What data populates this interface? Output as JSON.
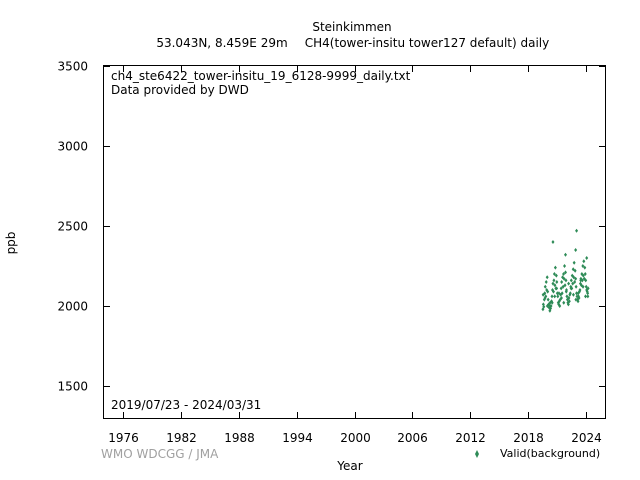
{
  "header": {
    "station": "Steinkimmen",
    "location": "53.043N, 8.459E 29m",
    "species": "CH4(tower-insitu tower127 default) daily"
  },
  "annotations": {
    "filename": "ch4_ste6422_tower-insitu_19_6128-9999_daily.txt",
    "provider": "Data provided by DWD",
    "period": "2019/07/23 - 2024/03/31",
    "credit": "WMO WDCGG / JMA"
  },
  "legend": {
    "marker_label": "Valid(background)"
  },
  "colors": {
    "series": "#2e8b57",
    "credit": "#a0a0a0"
  },
  "chart_data": {
    "type": "scatter",
    "xlabel": "Year",
    "ylabel": "ppb",
    "xlim": [
      1974,
      2026
    ],
    "ylim": [
      1300,
      3500
    ],
    "xticks": [
      1976,
      1982,
      1988,
      1994,
      2000,
      2006,
      2012,
      2018,
      2024
    ],
    "yticks": [
      1500,
      2000,
      2500,
      3000,
      3500
    ],
    "grid": false,
    "legend_position": "bottom-right",
    "series": [
      {
        "name": "Valid(background)",
        "marker": "diamond",
        "x": [
          2019.56,
          2019.6,
          2019.65,
          2019.7,
          2019.75,
          2019.8,
          2019.85,
          2019.9,
          2019.95,
          2020.0,
          2020.05,
          2020.1,
          2020.15,
          2020.2,
          2020.25,
          2020.3,
          2020.35,
          2020.4,
          2020.45,
          2020.5,
          2020.55,
          2020.6,
          2020.65,
          2020.7,
          2020.75,
          2020.8,
          2020.85,
          2020.9,
          2020.95,
          2021.0,
          2021.05,
          2021.1,
          2021.15,
          2021.2,
          2021.25,
          2021.3,
          2021.35,
          2021.4,
          2021.45,
          2021.5,
          2021.55,
          2021.6,
          2021.65,
          2021.7,
          2021.75,
          2021.8,
          2021.85,
          2021.9,
          2021.95,
          2022.0,
          2022.05,
          2022.1,
          2022.15,
          2022.2,
          2022.25,
          2022.3,
          2022.35,
          2022.4,
          2022.45,
          2022.5,
          2022.55,
          2022.6,
          2022.65,
          2022.7,
          2022.75,
          2022.8,
          2022.85,
          2022.9,
          2022.95,
          2023.0,
          2023.05,
          2023.1,
          2023.15,
          2023.2,
          2023.25,
          2023.3,
          2023.35,
          2023.4,
          2023.45,
          2023.5,
          2023.55,
          2023.6,
          2023.65,
          2023.7,
          2023.75,
          2023.8,
          2023.85,
          2023.9,
          2023.95,
          2024.0,
          2024.05,
          2024.1,
          2024.15,
          2024.2,
          2024.25,
          2019.58,
          2019.78,
          2020.02,
          2020.28,
          2020.52,
          2020.78,
          2020.98,
          2021.22,
          2021.48,
          2021.72,
          2021.98,
          2022.22,
          2022.48,
          2022.72,
          2022.98,
          2023.22,
          2023.48,
          2023.72,
          2023.98,
          2024.22,
          2020.6,
          2022.95,
          2023.05,
          2021.9,
          2024.1
        ],
        "y": [
          1980,
          2010,
          1995,
          2040,
          2080,
          2120,
          2060,
          2150,
          2100,
          2180,
          2090,
          2040,
          2010,
          1990,
          2000,
          2020,
          1985,
          2000,
          2030,
          2060,
          2100,
          2140,
          2090,
          2160,
          2200,
          2130,
          2240,
          2110,
          2190,
          2150,
          2080,
          2060,
          2020,
          2010,
          2030,
          2000,
          2040,
          2070,
          2110,
          2150,
          2080,
          2180,
          2120,
          2200,
          2170,
          2250,
          2130,
          2210,
          2160,
          2100,
          2060,
          2040,
          2020,
          2010,
          2050,
          2030,
          2070,
          2080,
          2120,
          2160,
          2110,
          2190,
          2140,
          2230,
          2180,
          2270,
          2150,
          2220,
          2170,
          2120,
          2080,
          2060,
          2040,
          2030,
          2060,
          2050,
          2090,
          2100,
          2140,
          2170,
          2130,
          2200,
          2160,
          2250,
          2190,
          2280,
          2170,
          2240,
          2200,
          2160,
          2120,
          2100,
          2090,
          2080,
          2110,
          2070,
          2050,
          2000,
          1970,
          2020,
          2060,
          2110,
          2080,
          2050,
          2020,
          2090,
          2140,
          2110,
          2070,
          2040,
          2080,
          2160,
          2120,
          2060,
          2060,
          2400,
          2350,
          2470,
          2320,
          2300
        ]
      }
    ]
  }
}
